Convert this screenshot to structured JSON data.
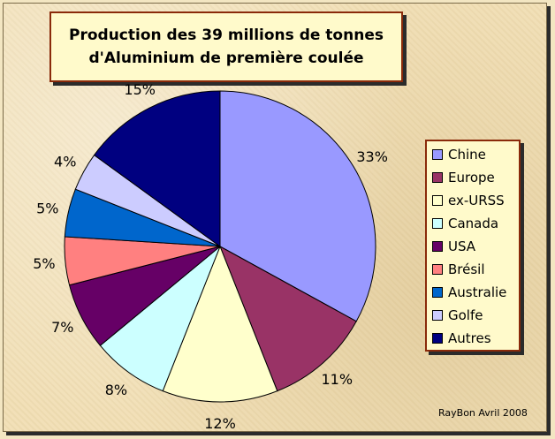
{
  "title_line1": "Production des 39 millions de tonnes",
  "title_line2": "d'Aluminium de première coulée",
  "credit": "RayBon Avril 2008",
  "chart_data": {
    "type": "pie",
    "title": "Production des 39 millions de tonnes d'Aluminium de première coulée",
    "unit": "%",
    "slices": [
      {
        "label": "Chine",
        "value": 33,
        "display": "33%",
        "color": "#9999ff"
      },
      {
        "label": "Europe",
        "value": 11,
        "display": "11%",
        "color": "#993366"
      },
      {
        "label": "ex-URSS",
        "value": 12,
        "display": "12%",
        "color": "#ffffcc"
      },
      {
        "label": "Canada",
        "value": 8,
        "display": "8%",
        "color": "#ccffff"
      },
      {
        "label": "USA",
        "value": 7,
        "display": "7%",
        "color": "#660066"
      },
      {
        "label": "Brésil",
        "value": 5,
        "display": "5%",
        "color": "#ff8080"
      },
      {
        "label": "Australie",
        "value": 5,
        "display": "5%",
        "color": "#0066cc"
      },
      {
        "label": "Golfe",
        "value": 4,
        "display": "4%",
        "color": "#ccccff"
      },
      {
        "label": "Autres",
        "value": 15,
        "display": "15%",
        "color": "#000080"
      }
    ],
    "legend_position": "right"
  }
}
